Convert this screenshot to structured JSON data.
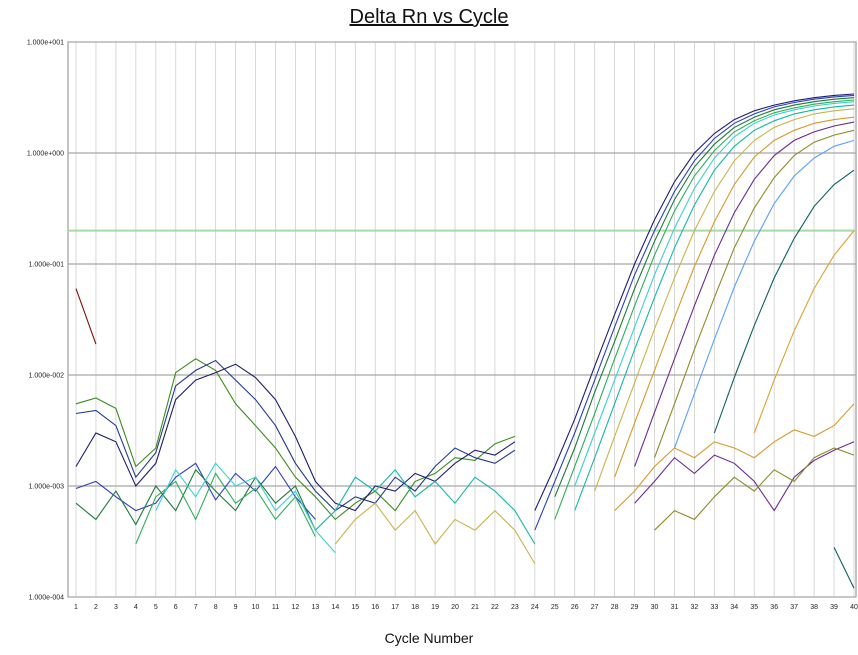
{
  "chart_data": {
    "type": "line",
    "title": "Delta Rn vs Cycle",
    "xlabel": "Cycle Number",
    "ylabel": "",
    "yscale": "log",
    "xlim": [
      1,
      40
    ],
    "ylim": [
      0.0001,
      10
    ],
    "x_ticks": [
      "1",
      "2",
      "3",
      "4",
      "5",
      "6",
      "7",
      "8",
      "9",
      "10",
      "11",
      "12",
      "13",
      "14",
      "15",
      "16",
      "17",
      "18",
      "19",
      "20",
      "21",
      "22",
      "23",
      "24",
      "25",
      "26",
      "27",
      "28",
      "29",
      "30",
      "31",
      "32",
      "33",
      "34",
      "35",
      "36",
      "37",
      "38",
      "39",
      "40"
    ],
    "y_ticks": [
      {
        "value": 10,
        "label": "1.000e+001"
      },
      {
        "value": 1,
        "label": "1.000e+000"
      },
      {
        "value": 0.1,
        "label": "1.000e-001"
      },
      {
        "value": 0.01,
        "label": "1.000e-002"
      },
      {
        "value": 0.001,
        "label": "1.000e-003"
      },
      {
        "value": 0.0001,
        "label": "1.000e-004"
      }
    ],
    "threshold": 0.2,
    "grid": true,
    "legend": "none",
    "colors": {
      "gridline": "#cfcfcf",
      "major_gridline": "#a8a8a8",
      "threshold": "#a6d9a6",
      "palette": [
        "#1e1e6e",
        "#2b3fbf",
        "#1a7a3a",
        "#2fae5a",
        "#3ad0d0",
        "#14b7a8",
        "#c7b44a",
        "#d69a2a",
        "#6b2a8f",
        "#8c8c2a",
        "#5aa0ff",
        "#0f5f5f",
        "#e0a030",
        "#3c8c1e",
        "#223a8a"
      ]
    },
    "series": [
      {
        "x": [
          24,
          25,
          26,
          27,
          28,
          29,
          30,
          31,
          32,
          33,
          34,
          35,
          36,
          37,
          38,
          39,
          40
        ],
        "y": [
          0.0006,
          0.0015,
          0.004,
          0.012,
          0.035,
          0.1,
          0.25,
          0.55,
          1.0,
          1.5,
          2.0,
          2.4,
          2.7,
          2.95,
          3.15,
          3.3,
          3.4
        ]
      },
      {
        "x": [
          24,
          25,
          26,
          27,
          28,
          29,
          30,
          31,
          32,
          33,
          34,
          35,
          36,
          37,
          38,
          39,
          40
        ],
        "y": [
          0.0004,
          0.0011,
          0.003,
          0.009,
          0.027,
          0.08,
          0.2,
          0.45,
          0.85,
          1.35,
          1.85,
          2.25,
          2.6,
          2.85,
          3.05,
          3.2,
          3.3
        ]
      },
      {
        "x": [
          25,
          26,
          27,
          28,
          29,
          30,
          31,
          32,
          33,
          34,
          35,
          36,
          37,
          38,
          39,
          40
        ],
        "y": [
          0.0008,
          0.0022,
          0.007,
          0.02,
          0.06,
          0.16,
          0.38,
          0.75,
          1.2,
          1.7,
          2.1,
          2.45,
          2.7,
          2.9,
          3.05,
          3.15
        ]
      },
      {
        "x": [
          25,
          26,
          27,
          28,
          29,
          30,
          31,
          32,
          33,
          34,
          35,
          36,
          37,
          38,
          39,
          40
        ],
        "y": [
          0.0005,
          0.0015,
          0.0045,
          0.014,
          0.042,
          0.12,
          0.3,
          0.62,
          1.05,
          1.55,
          1.95,
          2.3,
          2.55,
          2.75,
          2.9,
          3.0
        ]
      },
      {
        "x": [
          26,
          27,
          28,
          29,
          30,
          31,
          32,
          33,
          34,
          35,
          36,
          37,
          38,
          39,
          40
        ],
        "y": [
          0.001,
          0.003,
          0.009,
          0.027,
          0.08,
          0.21,
          0.48,
          0.9,
          1.4,
          1.85,
          2.2,
          2.45,
          2.65,
          2.8,
          2.9
        ]
      },
      {
        "x": [
          26,
          27,
          28,
          29,
          30,
          31,
          32,
          33,
          34,
          35,
          36,
          37,
          38,
          39,
          40
        ],
        "y": [
          0.0006,
          0.0018,
          0.0055,
          0.017,
          0.05,
          0.14,
          0.34,
          0.7,
          1.15,
          1.6,
          1.95,
          2.25,
          2.45,
          2.6,
          2.7
        ]
      },
      {
        "x": [
          27,
          28,
          29,
          30,
          31,
          32,
          33,
          34,
          35,
          36,
          37,
          38,
          39,
          40
        ],
        "y": [
          0.0009,
          0.0028,
          0.0085,
          0.026,
          0.075,
          0.2,
          0.45,
          0.85,
          1.3,
          1.7,
          2.0,
          2.25,
          2.4,
          2.5
        ]
      },
      {
        "x": [
          28,
          29,
          30,
          31,
          32,
          33,
          34,
          35,
          36,
          37,
          38,
          39,
          40
        ],
        "y": [
          0.0012,
          0.0037,
          0.011,
          0.033,
          0.095,
          0.24,
          0.52,
          0.92,
          1.3,
          1.6,
          1.85,
          2.0,
          2.1
        ]
      },
      {
        "x": [
          29,
          30,
          31,
          32,
          33,
          34,
          35,
          36,
          37,
          38,
          39,
          40
        ],
        "y": [
          0.0015,
          0.0046,
          0.014,
          0.042,
          0.12,
          0.29,
          0.58,
          0.95,
          1.3,
          1.55,
          1.75,
          1.9
        ]
      },
      {
        "x": [
          30,
          31,
          32,
          33,
          34,
          35,
          36,
          37,
          38,
          39,
          40
        ],
        "y": [
          0.0018,
          0.0055,
          0.017,
          0.05,
          0.14,
          0.32,
          0.6,
          0.95,
          1.25,
          1.45,
          1.6
        ]
      },
      {
        "x": [
          31,
          32,
          33,
          34,
          35,
          36,
          37,
          38,
          39,
          40
        ],
        "y": [
          0.0022,
          0.0068,
          0.021,
          0.062,
          0.16,
          0.35,
          0.62,
          0.9,
          1.15,
          1.3
        ]
      },
      {
        "x": [
          33,
          34,
          35,
          36,
          37,
          38,
          39,
          40
        ],
        "y": [
          0.003,
          0.0095,
          0.028,
          0.075,
          0.17,
          0.33,
          0.52,
          0.7
        ]
      },
      {
        "x": [
          35,
          36,
          37,
          38,
          39,
          40
        ],
        "y": [
          0.003,
          0.009,
          0.025,
          0.06,
          0.12,
          0.2
        ]
      },
      {
        "x": [
          1,
          2,
          3,
          4,
          5,
          6,
          7,
          8,
          9,
          10,
          11,
          12,
          13,
          14,
          15,
          16,
          17,
          18,
          19,
          20,
          21,
          22,
          23
        ],
        "y": [
          0.0055,
          0.0062,
          0.005,
          0.0015,
          0.0022,
          0.0105,
          0.014,
          0.011,
          0.0055,
          0.0035,
          0.0022,
          0.0012,
          0.0008,
          0.0005,
          0.0007,
          0.0009,
          0.0006,
          0.0011,
          0.0013,
          0.0018,
          0.0017,
          0.0024,
          0.0028
        ]
      },
      {
        "x": [
          1,
          2,
          3,
          4,
          5,
          6,
          7,
          8,
          9,
          10,
          11,
          12,
          13,
          14,
          15,
          16,
          17,
          18,
          19,
          20,
          21,
          22,
          23
        ],
        "y": [
          0.0045,
          0.0048,
          0.0035,
          0.0012,
          0.002,
          0.008,
          0.011,
          0.0135,
          0.009,
          0.006,
          0.0035,
          0.0016,
          0.0009,
          0.0006,
          0.0008,
          0.0007,
          0.0012,
          0.0009,
          0.0015,
          0.0022,
          0.0018,
          0.0016,
          0.0021
        ]
      },
      {
        "x": [
          1,
          2,
          3,
          4,
          5,
          6,
          7,
          8,
          9,
          10,
          11,
          12,
          13,
          14,
          15,
          16,
          17,
          18,
          19,
          20,
          21,
          22,
          23
        ],
        "y": [
          0.0015,
          0.003,
          0.0025,
          0.001,
          0.0016,
          0.006,
          0.009,
          0.0105,
          0.0125,
          0.0095,
          0.006,
          0.0028,
          0.0011,
          0.0007,
          0.0006,
          0.001,
          0.0009,
          0.0013,
          0.0011,
          0.0016,
          0.0021,
          0.0019,
          0.0025
        ]
      },
      {
        "x": [
          1,
          2,
          3,
          4,
          5,
          6,
          7,
          8,
          9,
          10,
          11,
          12,
          13
        ],
        "y": [
          0.00095,
          0.0011,
          0.0008,
          0.0006,
          0.0007,
          0.0012,
          0.0016,
          0.00075,
          0.0013,
          0.0009,
          0.0015,
          0.0008,
          0.0005
        ]
      },
      {
        "x": [
          1,
          2,
          3,
          4,
          5,
          6,
          7,
          8,
          9,
          10,
          11,
          12,
          13
        ],
        "y": [
          0.0007,
          0.0005,
          0.0009,
          0.00045,
          0.001,
          0.0006,
          0.0014,
          0.0009,
          0.0006,
          0.0012,
          0.0007,
          0.001,
          0.0004
        ]
      },
      {
        "x": [
          4,
          5,
          6,
          7,
          8,
          9,
          10,
          11,
          12,
          13
        ],
        "y": [
          0.0003,
          0.0008,
          0.0011,
          0.0005,
          0.0013,
          0.0007,
          0.00095,
          0.0005,
          0.0008,
          0.00035
        ]
      },
      {
        "x": [
          5,
          6,
          7,
          8,
          9,
          10,
          11,
          12,
          13,
          14
        ],
        "y": [
          0.0006,
          0.0014,
          0.0008,
          0.0016,
          0.001,
          0.0012,
          0.0006,
          0.0009,
          0.0004,
          0.00025
        ]
      },
      {
        "x": [
          13,
          14,
          15,
          16,
          17,
          18,
          19,
          20,
          21,
          22,
          23,
          24
        ],
        "y": [
          0.0004,
          0.0006,
          0.0012,
          0.0009,
          0.0014,
          0.0008,
          0.0011,
          0.0007,
          0.0012,
          0.0009,
          0.0006,
          0.0003
        ]
      },
      {
        "x": [
          14,
          15,
          16,
          17,
          18,
          19,
          20,
          21,
          22,
          23,
          24
        ],
        "y": [
          0.0003,
          0.0005,
          0.0007,
          0.0004,
          0.0006,
          0.0003,
          0.0005,
          0.0004,
          0.0006,
          0.0004,
          0.0002
        ]
      },
      {
        "x": [
          28,
          29,
          30,
          31,
          32,
          33,
          34,
          35,
          36,
          37,
          38,
          39,
          40
        ],
        "y": [
          0.0006,
          0.0009,
          0.0015,
          0.0022,
          0.0018,
          0.0025,
          0.0022,
          0.0018,
          0.0025,
          0.0032,
          0.0028,
          0.0035,
          0.0055
        ]
      },
      {
        "x": [
          29,
          30,
          31,
          32,
          33,
          34,
          35,
          36,
          37,
          38,
          39,
          40
        ],
        "y": [
          0.0007,
          0.0011,
          0.0018,
          0.0013,
          0.0019,
          0.0016,
          0.0011,
          0.0006,
          0.0012,
          0.0017,
          0.0021,
          0.0025
        ]
      },
      {
        "x": [
          30,
          31,
          32,
          33,
          34,
          35,
          36,
          37,
          38,
          39,
          40
        ],
        "y": [
          0.0004,
          0.0006,
          0.0005,
          0.0008,
          0.0012,
          0.0009,
          0.0014,
          0.0011,
          0.0018,
          0.0022,
          0.0019
        ]
      },
      {
        "x": [
          1,
          2
        ],
        "y": [
          0.06,
          0.019
        ]
      },
      {
        "x": [
          39,
          40
        ],
        "y": [
          0.00028,
          0.00012
        ]
      }
    ]
  }
}
